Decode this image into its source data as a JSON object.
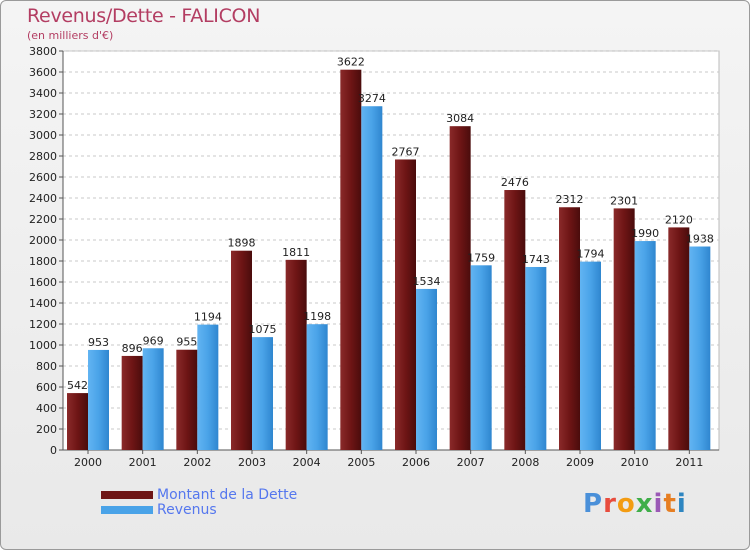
{
  "header": {
    "title": "Revenus/Dette - FALICON",
    "subtitle": "(en milliers d'€)"
  },
  "colors": {
    "dette": "#6e1515",
    "revenus": "#4aa3e8",
    "title": "#b33d62",
    "legend_text": "#5577ee"
  },
  "legend": {
    "dette_label": "Montant de la Dette",
    "revenus_label": "Revenus"
  },
  "logo": {
    "text": "Proxiti"
  },
  "chart_data": {
    "type": "bar",
    "title": "Revenus/Dette - FALICON",
    "subtitle": "(en milliers d'€)",
    "xlabel": "",
    "ylabel": "",
    "categories": [
      "2000",
      "2001",
      "2002",
      "2003",
      "2004",
      "2005",
      "2006",
      "2007",
      "2008",
      "2009",
      "2010",
      "2011"
    ],
    "series": [
      {
        "name": "Montant de la Dette",
        "values": [
          542,
          896,
          955,
          1898,
          1811,
          3622,
          2767,
          3084,
          2476,
          2312,
          2301,
          2120
        ]
      },
      {
        "name": "Revenus",
        "values": [
          953,
          969,
          1194,
          1075,
          1198,
          3274,
          1534,
          1759,
          1743,
          1794,
          1990,
          1938
        ]
      }
    ],
    "ylim": [
      0,
      3800
    ],
    "yticks": [
      0,
      200,
      400,
      600,
      800,
      1000,
      1200,
      1400,
      1600,
      1800,
      2000,
      2200,
      2400,
      2600,
      2800,
      3000,
      3200,
      3400,
      3600,
      3800
    ],
    "grid": true,
    "legend_position": "bottom-left"
  }
}
